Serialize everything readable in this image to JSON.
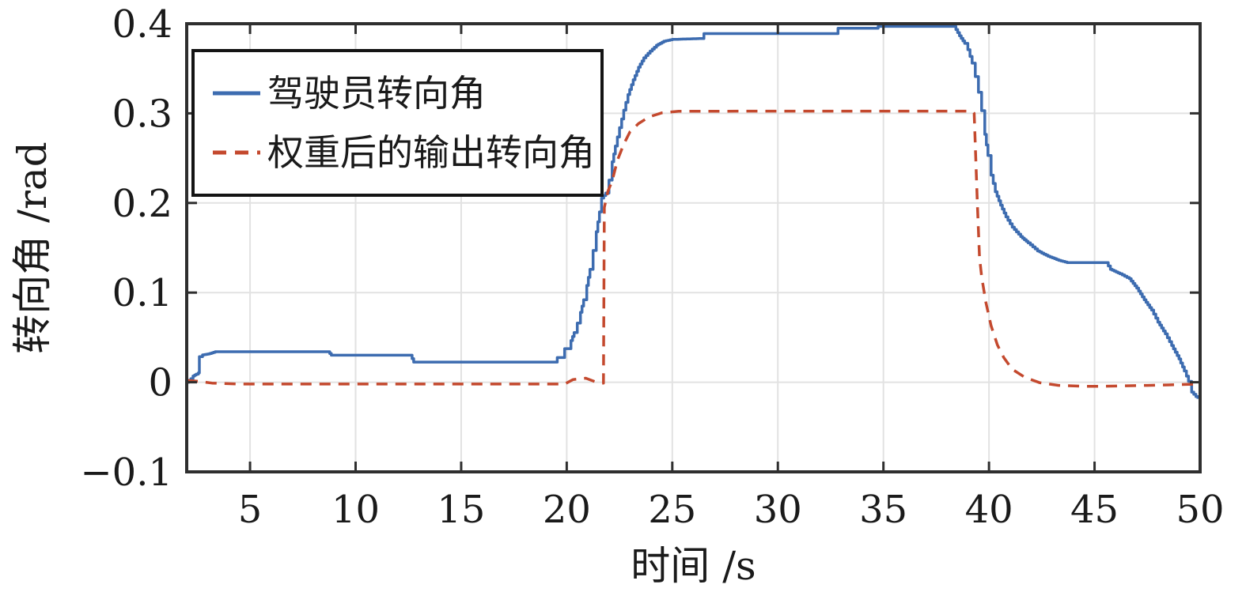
{
  "figure": {
    "background": "#ffffff"
  },
  "chart_data": {
    "type": "line",
    "title": "",
    "xlabel": "时间 /s",
    "ylabel": "转向角 /rad",
    "xlim": [
      2,
      50
    ],
    "ylim": [
      -0.1,
      0.4
    ],
    "x_ticks": [
      5,
      10,
      15,
      20,
      25,
      30,
      35,
      40,
      45,
      50
    ],
    "x_tick_labels": [
      "5",
      "10",
      "15",
      "20",
      "25",
      "30",
      "35",
      "40",
      "45",
      "50"
    ],
    "y_ticks": [
      -0.1,
      0,
      0.1,
      0.2,
      0.3,
      0.4
    ],
    "y_tick_labels": [
      "−0.1",
      "0",
      "0.1",
      "0.2",
      "0.3",
      "0.4"
    ],
    "grid": true,
    "colors": {
      "grid": "#e2e2e2",
      "axis": "#2f2f2f",
      "text": "#1a1a1a",
      "legend_border": "#141414"
    },
    "legend": {
      "position": "top-left",
      "entries": [
        "驾驶员转向角",
        "权重后的输出转向角"
      ]
    },
    "series": [
      {
        "name": "驾驶员转向角",
        "color": "#3d6cb0",
        "style": "solid",
        "line_width": 3.5,
        "step_like": true,
        "points": [
          [
            2,
            0
          ],
          [
            2.2,
            0.004
          ],
          [
            2.3,
            0.007
          ],
          [
            2.45,
            0.009
          ],
          [
            2.55,
            0.0105
          ],
          [
            2.6,
            0.0285
          ],
          [
            2.75,
            0.0305
          ],
          [
            3.0,
            0.0315
          ],
          [
            3.35,
            0.034
          ],
          [
            8.7,
            0.034
          ],
          [
            8.85,
            0.0302
          ],
          [
            12.6,
            0.0302
          ],
          [
            12.75,
            0.0225
          ],
          [
            19.45,
            0.0225
          ],
          [
            19.55,
            0.0275
          ],
          [
            19.8,
            0.0275
          ],
          [
            19.9,
            0.0375
          ],
          [
            20.1,
            0.0375
          ],
          [
            20.2,
            0.0465
          ],
          [
            20.35,
            0.0555
          ],
          [
            20.5,
            0.066
          ],
          [
            20.65,
            0.078
          ],
          [
            20.8,
            0.092
          ],
          [
            20.95,
            0.108
          ],
          [
            21.1,
            0.126
          ],
          [
            21.25,
            0.147
          ],
          [
            21.4,
            0.168
          ],
          [
            21.55,
            0.19
          ],
          [
            21.65,
            0.2055
          ],
          [
            21.85,
            0.211
          ],
          [
            22.0,
            0.2255
          ],
          [
            22.15,
            0.246
          ],
          [
            22.3,
            0.2635
          ],
          [
            22.5,
            0.284
          ],
          [
            22.7,
            0.3035
          ],
          [
            22.9,
            0.321
          ],
          [
            23.15,
            0.3375
          ],
          [
            23.4,
            0.3515
          ],
          [
            23.65,
            0.362
          ],
          [
            23.95,
            0.3695
          ],
          [
            24.25,
            0.376
          ],
          [
            24.6,
            0.3805
          ],
          [
            25.0,
            0.3825
          ],
          [
            26.35,
            0.3835
          ],
          [
            26.5,
            0.389
          ],
          [
            32.7,
            0.389
          ],
          [
            32.85,
            0.395
          ],
          [
            34.6,
            0.395
          ],
          [
            34.75,
            0.397
          ],
          [
            38.35,
            0.397
          ],
          [
            38.6,
            0.3865
          ],
          [
            38.85,
            0.378
          ],
          [
            39.0,
            0.371
          ],
          [
            39.2,
            0.356
          ],
          [
            39.35,
            0.341
          ],
          [
            39.5,
            0.3235
          ],
          [
            39.65,
            0.303
          ],
          [
            39.8,
            0.2765
          ],
          [
            39.95,
            0.253
          ],
          [
            40.1,
            0.231
          ],
          [
            40.3,
            0.2125
          ],
          [
            40.55,
            0.1975
          ],
          [
            40.8,
            0.1845
          ],
          [
            41.1,
            0.173
          ],
          [
            41.5,
            0.1625
          ],
          [
            41.85,
            0.1555
          ],
          [
            42.3,
            0.1465
          ],
          [
            42.8,
            0.1405
          ],
          [
            43.3,
            0.136
          ],
          [
            43.7,
            0.1335
          ],
          [
            45.55,
            0.1335
          ],
          [
            45.75,
            0.126
          ],
          [
            46.2,
            0.121
          ],
          [
            46.65,
            0.1155
          ],
          [
            47.0,
            0.105
          ],
          [
            47.35,
            0.092
          ],
          [
            47.7,
            0.0805
          ],
          [
            48.0,
            0.067
          ],
          [
            48.35,
            0.054
          ],
          [
            48.65,
            0.041
          ],
          [
            49.0,
            0.026
          ],
          [
            49.25,
            0.0125
          ],
          [
            49.45,
            0.001
          ],
          [
            49.6,
            -0.011
          ],
          [
            49.9,
            -0.0185
          ]
        ]
      },
      {
        "name": "权重后的输出转向角",
        "color": "#c4492e",
        "style": "dashed",
        "line_width": 3.5,
        "dash_pattern": [
          14,
          10
        ],
        "step_like": false,
        "points": [
          [
            2,
            0.002
          ],
          [
            2.6,
            0.001
          ],
          [
            3.2,
            -0.001
          ],
          [
            4.5,
            -0.002
          ],
          [
            19.9,
            -0.002
          ],
          [
            20.3,
            0.003
          ],
          [
            20.9,
            0.0045
          ],
          [
            21.3,
            0.001
          ],
          [
            21.55,
            -0.001
          ],
          [
            21.74,
            -0.001
          ],
          [
            21.78,
            0.195
          ],
          [
            21.95,
            0.213
          ],
          [
            22.15,
            0.2245
          ],
          [
            22.4,
            0.2475
          ],
          [
            22.7,
            0.2655
          ],
          [
            23.0,
            0.2795
          ],
          [
            23.4,
            0.2885
          ],
          [
            23.9,
            0.296
          ],
          [
            24.5,
            0.3005
          ],
          [
            25.3,
            0.3023
          ],
          [
            30.0,
            0.3025
          ],
          [
            39.2,
            0.3025
          ],
          [
            39.3,
            0.3
          ],
          [
            39.45,
            0.2
          ],
          [
            39.55,
            0.14
          ],
          [
            39.65,
            0.118
          ],
          [
            39.85,
            0.0895
          ],
          [
            40.1,
            0.063
          ],
          [
            40.4,
            0.0415
          ],
          [
            40.7,
            0.0275
          ],
          [
            41.1,
            0.0145
          ],
          [
            41.7,
            0.0055
          ],
          [
            42.4,
            -0.0005
          ],
          [
            43.3,
            -0.0035
          ],
          [
            44.5,
            -0.0045
          ],
          [
            45.5,
            -0.0045
          ],
          [
            46.5,
            -0.004
          ],
          [
            47.5,
            -0.0035
          ],
          [
            48.5,
            -0.003
          ],
          [
            49.3,
            -0.0025
          ],
          [
            50,
            -0.002
          ]
        ]
      }
    ]
  }
}
